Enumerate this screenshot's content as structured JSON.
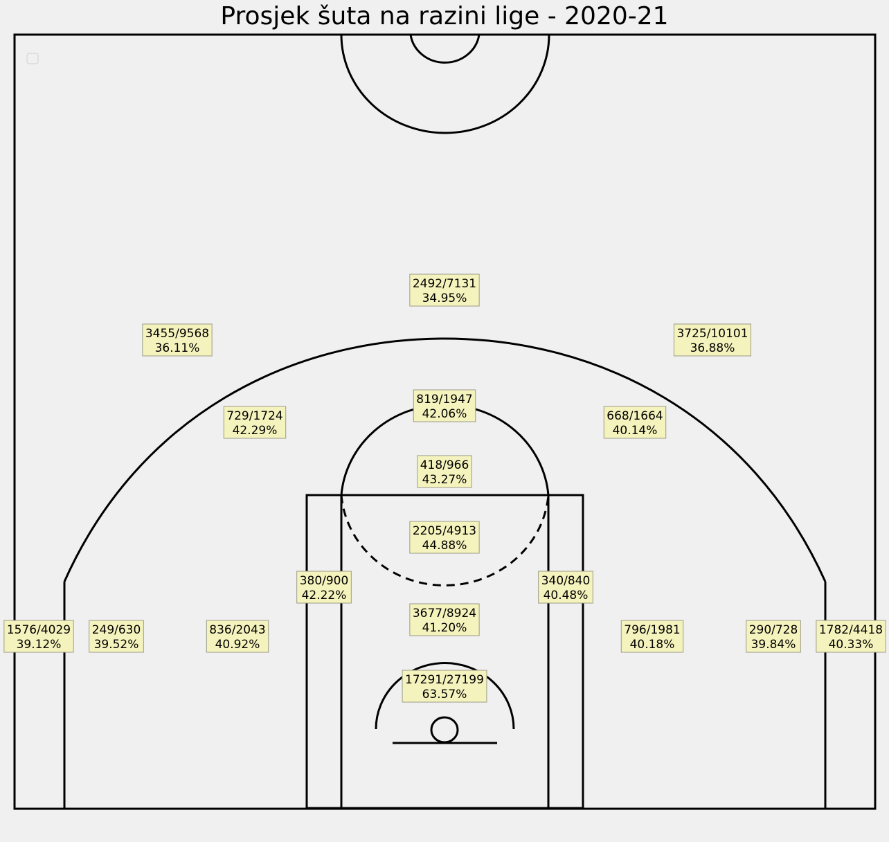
{
  "chart_data": {
    "type": "shot-chart",
    "title": "Prosjek šuta na razini lige - 2020-21",
    "zones": [
      {
        "id": "restricted-area",
        "made_attempted": "17291/27199",
        "pct": "63.57%"
      },
      {
        "id": "paint-non-ra",
        "made_attempted": "3677/8924",
        "pct": "41.20%"
      },
      {
        "id": "top-paint",
        "made_attempted": "2205/4913",
        "pct": "44.88%"
      },
      {
        "id": "ft-circle-top",
        "made_attempted": "418/966",
        "pct": "43.27%"
      },
      {
        "id": "top-key-mid",
        "made_attempted": "819/1947",
        "pct": "42.06%"
      },
      {
        "id": "left-elbow",
        "made_attempted": "729/1724",
        "pct": "42.29%"
      },
      {
        "id": "right-elbow",
        "made_attempted": "668/1664",
        "pct": "40.14%"
      },
      {
        "id": "left-short-mid",
        "made_attempted": "380/900",
        "pct": "42.22%"
      },
      {
        "id": "right-short-mid",
        "made_attempted": "340/840",
        "pct": "40.48%"
      },
      {
        "id": "left-baseline-mid",
        "made_attempted": "836/2043",
        "pct": "40.92%"
      },
      {
        "id": "right-baseline-mid",
        "made_attempted": "796/1981",
        "pct": "40.18%"
      },
      {
        "id": "left-long-baseline-mid",
        "made_attempted": "249/630",
        "pct": "39.52%"
      },
      {
        "id": "right-long-baseline-mid",
        "made_attempted": "290/728",
        "pct": "39.84%"
      },
      {
        "id": "left-corner-three",
        "made_attempted": "1576/4029",
        "pct": "39.12%"
      },
      {
        "id": "right-corner-three",
        "made_attempted": "1782/4418",
        "pct": "40.33%"
      },
      {
        "id": "left-wing-three",
        "made_attempted": "3455/9568",
        "pct": "36.11%"
      },
      {
        "id": "right-wing-three",
        "made_attempted": "3725/10101",
        "pct": "36.88%"
      },
      {
        "id": "top-three",
        "made_attempted": "2492/7131",
        "pct": "34.95%"
      }
    ]
  },
  "colors": {
    "background": "#f0f0f0",
    "lines": "#000000",
    "label_box": "#f5f3bd"
  }
}
